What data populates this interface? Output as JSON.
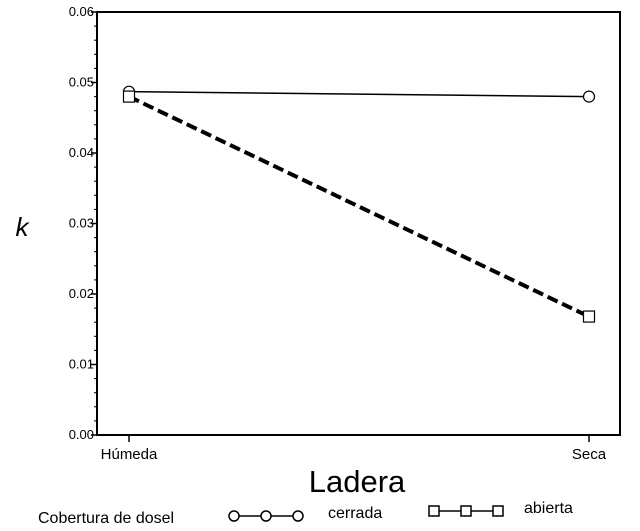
{
  "chart_data": {
    "type": "line",
    "xlabel": "Ladera",
    "ylabel": "k",
    "categories": [
      "Húmeda",
      "Seca"
    ],
    "ylim": [
      0,
      0.06
    ],
    "yticks": [
      "0.00",
      "0.01",
      "0.02",
      "0.03",
      "0.04",
      "0.05",
      "0.06"
    ],
    "grid": false,
    "legend": {
      "title": "Cobertura de dosel",
      "placement": "bottom"
    },
    "series": [
      {
        "name": "cerrada",
        "values": [
          0.0487,
          0.048
        ],
        "marker": "circle",
        "line_style": "solid"
      },
      {
        "name": "abierta",
        "values": [
          0.048,
          0.0168
        ],
        "marker": "square",
        "line_style": "dashed"
      }
    ]
  }
}
